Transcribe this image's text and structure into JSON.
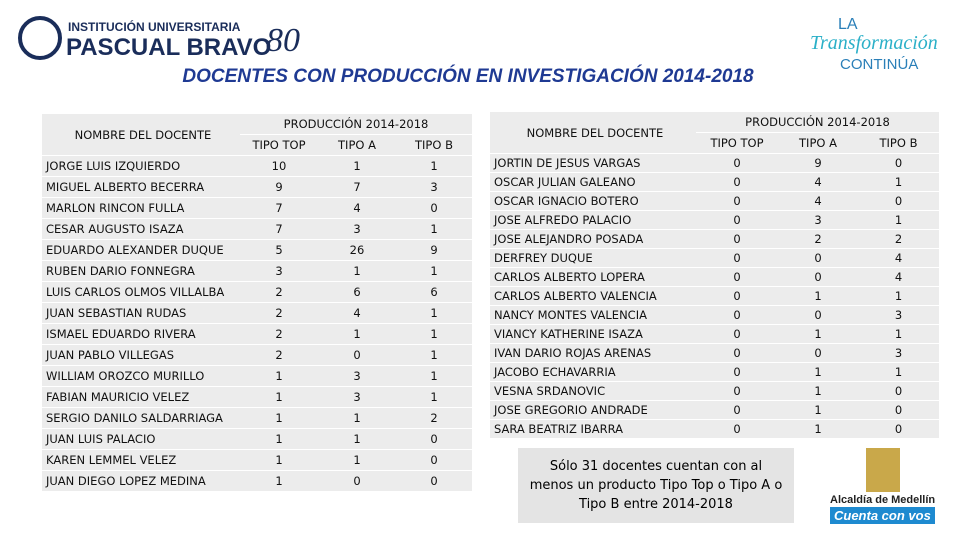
{
  "header": {
    "institution_top": "INSTITUCIÓN UNIVERSITARIA",
    "institution_name": "PASCUAL BRAVO",
    "anniversary": "80",
    "slogan_top": "LA",
    "slogan_mid": "Transformación",
    "slogan_bottom": "CONTINÚA"
  },
  "title": "DOCENTES CON PRODUCCIÓN EN INVESTIGACIÓN 2014-2018",
  "tables": [
    {
      "name_header": "NOMBRE DEL DOCENTE",
      "group_header": "PRODUCCIÓN 2014-2018",
      "columns": [
        "TIPO TOP",
        "TIPO A",
        "TIPO B"
      ],
      "rows": [
        [
          "JORGE LUIS IZQUIERDO",
          10,
          1,
          1
        ],
        [
          "MIGUEL ALBERTO BECERRA",
          9,
          7,
          3
        ],
        [
          "MARLON RINCON FULLA",
          7,
          4,
          0
        ],
        [
          "CESAR AUGUSTO ISAZA",
          7,
          3,
          1
        ],
        [
          "EDUARDO ALEXANDER DUQUE",
          5,
          26,
          9
        ],
        [
          "RUBEN DARIO FONNEGRA",
          3,
          1,
          1
        ],
        [
          "LUIS CARLOS OLMOS VILLALBA",
          2,
          6,
          6
        ],
        [
          "JUAN SEBASTIAN RUDAS",
          2,
          4,
          1
        ],
        [
          "ISMAEL EDUARDO RIVERA",
          2,
          1,
          1
        ],
        [
          "JUAN PABLO VILLEGAS",
          2,
          0,
          1
        ],
        [
          "WILLIAM OROZCO MURILLO",
          1,
          3,
          1
        ],
        [
          "FABIAN MAURICIO VELEZ",
          1,
          3,
          1
        ],
        [
          "SERGIO DANILO SALDARRIAGA",
          1,
          1,
          2
        ],
        [
          "JUAN LUIS PALACIO",
          1,
          1,
          0
        ],
        [
          "KAREN LEMMEL VELEZ",
          1,
          1,
          0
        ],
        [
          "JUAN DIEGO LOPEZ MEDINA",
          1,
          0,
          0
        ]
      ]
    },
    {
      "name_header": "NOMBRE DEL DOCENTE",
      "group_header": "PRODUCCIÓN 2014-2018",
      "columns": [
        "TIPO TOP",
        "TIPO A",
        "TIPO B"
      ],
      "rows": [
        [
          "JORTIN DE JESUS VARGAS",
          0,
          9,
          0
        ],
        [
          "OSCAR JULIAN GALEANO",
          0,
          4,
          1
        ],
        [
          "OSCAR IGNACIO BOTERO",
          0,
          4,
          0
        ],
        [
          "JOSE ALFREDO PALACIO",
          0,
          3,
          1
        ],
        [
          "JOSE ALEJANDRO POSADA",
          0,
          2,
          2
        ],
        [
          "DERFREY DUQUE",
          0,
          0,
          4
        ],
        [
          "CARLOS ALBERTO LOPERA",
          0,
          0,
          4
        ],
        [
          "CARLOS ALBERTO VALENCIA",
          0,
          1,
          1
        ],
        [
          "NANCY MONTES VALENCIA",
          0,
          0,
          3
        ],
        [
          "VIANCY KATHERINE ISAZA",
          0,
          1,
          1
        ],
        [
          "IVAN DARIO ROJAS ARENAS",
          0,
          0,
          3
        ],
        [
          "JACOBO ECHAVARRIA",
          0,
          1,
          1
        ],
        [
          "VESNA SRDANOVIC",
          0,
          1,
          0
        ],
        [
          "JOSE GREGORIO ANDRADE",
          0,
          1,
          0
        ],
        [
          "SARA BEATRIZ IBARRA",
          0,
          1,
          0
        ]
      ]
    }
  ],
  "note": "Sólo 31 docentes cuentan con al menos un producto Tipo Top o Tipo A o Tipo B entre 2014-2018",
  "footer": {
    "city_top": "Alcaldía de Medellín",
    "city_bottom": "Cuenta con vos"
  }
}
